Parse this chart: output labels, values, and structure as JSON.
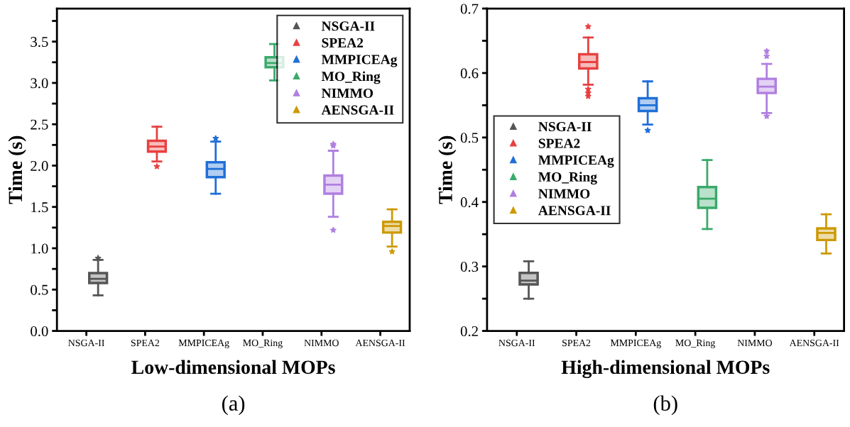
{
  "chart_data": [
    {
      "type": "box",
      "xlabel": "Low-dimensional MOPs",
      "ylabel": "Time (s)",
      "annotations": [
        "(a)"
      ],
      "legend": "top right",
      "marker": "triangle",
      "categories": [
        "NSGA-II",
        "SPEA2",
        "MMPICEAg",
        "MO_Ring",
        "NIMMO",
        "AENSGA-II"
      ],
      "ylim": [
        0,
        3.9
      ],
      "yticks": [
        {
          "value": 0,
          "label": "0.0"
        },
        {
          "value": 0.25,
          "label": null
        },
        0.5,
        {
          "value": 0.75,
          "label": null
        },
        {
          "value": 1,
          "label": "1.0"
        },
        {
          "value": 1.25,
          "label": null
        },
        1.5,
        {
          "value": 1.75,
          "label": null
        },
        {
          "value": 2,
          "label": "2.0"
        },
        {
          "value": 2.25,
          "label": null
        },
        2.5,
        {
          "value": 2.75,
          "label": null
        },
        {
          "value": 3,
          "label": "3.0"
        },
        {
          "value": 3.25,
          "label": null
        },
        3.5,
        {
          "value": 3.75,
          "label": null
        }
      ],
      "series": [
        {
          "name": "NSGA-II",
          "color": "#555555",
          "boxes": [
            {
              "low": 0.43,
              "q1": 0.58,
              "median": 0.63,
              "q3": 0.7,
              "high": 0.86,
              "outliers": [
                0.88
              ]
            },
            null,
            null,
            null,
            null,
            null
          ]
        },
        {
          "name": "SPEA2",
          "color": "#e84040",
          "boxes": [
            null,
            {
              "low": 2.05,
              "q1": 2.17,
              "median": 2.23,
              "q3": 2.3,
              "high": 2.47,
              "outliers": [
                1.99
              ]
            },
            null,
            null,
            null,
            null
          ]
        },
        {
          "name": "MMPICEAg",
          "color": "#1f6fd8",
          "boxes": [
            null,
            null,
            {
              "low": 1.66,
              "q1": 1.86,
              "median": 1.96,
              "q3": 2.04,
              "high": 2.29,
              "outliers": [
                2.33
              ]
            },
            null,
            null,
            null
          ]
        },
        {
          "name": "MO_Ring",
          "color": "#3aaa6a",
          "boxes": [
            null,
            null,
            null,
            {
              "low": 3.03,
              "q1": 3.19,
              "median": 3.24,
              "q3": 3.31,
              "high": 3.47
            },
            null,
            null
          ]
        },
        {
          "name": "NIMMO",
          "color": "#b07fe0",
          "boxes": [
            null,
            null,
            null,
            null,
            {
              "low": 1.38,
              "q1": 1.66,
              "median": 1.77,
              "q3": 1.88,
              "high": 2.18,
              "outliers": [
                2.26,
                2.24,
                1.22
              ]
            },
            null
          ]
        },
        {
          "name": "AENSGA-II",
          "color": "#cc9a06",
          "boxes": [
            null,
            null,
            null,
            null,
            null,
            {
              "low": 1.02,
              "q1": 1.19,
              "median": 1.27,
              "q3": 1.32,
              "high": 1.47,
              "outliers": [
                0.96
              ]
            }
          ]
        }
      ]
    },
    {
      "type": "box",
      "xlabel": "High-dimensional MOPs",
      "ylabel": "Time (s)",
      "annotations": [
        "(b)"
      ],
      "legend": "left",
      "marker": "triangle",
      "categories": [
        "NSGA-II",
        "SPEA2",
        "MMPICEAg",
        "MO_Ring",
        "NIMMO",
        "AENSGA-II"
      ],
      "ylim": [
        0.2,
        0.7
      ],
      "yticks": [
        0.2,
        {
          "value": 0.25,
          "label": null
        },
        0.3,
        {
          "value": 0.35,
          "label": null
        },
        0.4,
        {
          "value": 0.45,
          "label": null
        },
        0.5,
        {
          "value": 0.55,
          "label": null
        },
        0.6,
        {
          "value": 0.65,
          "label": null
        },
        0.7
      ],
      "series": [
        {
          "name": "NSGA-II",
          "color": "#555555",
          "boxes": [
            {
              "low": 0.25,
              "q1": 0.272,
              "median": 0.278,
              "q3": 0.29,
              "high": 0.308
            },
            null,
            null,
            null,
            null,
            null
          ]
        },
        {
          "name": "SPEA2",
          "color": "#e84040",
          "boxes": [
            null,
            {
              "low": 0.582,
              "q1": 0.607,
              "median": 0.617,
              "q3": 0.629,
              "high": 0.655,
              "outliers": [
                0.672,
                0.575,
                0.569,
                0.564
              ]
            },
            null,
            null,
            null,
            null
          ]
        },
        {
          "name": "MMPICEAg",
          "color": "#1f6fd8",
          "boxes": [
            null,
            null,
            {
              "low": 0.52,
              "q1": 0.541,
              "median": 0.55,
              "q3": 0.561,
              "high": 0.587,
              "outliers": [
                0.511
              ]
            },
            null,
            null,
            null
          ]
        },
        {
          "name": "MO_Ring",
          "color": "#3aaa6a",
          "boxes": [
            null,
            null,
            null,
            {
              "low": 0.358,
              "q1": 0.391,
              "median": 0.405,
              "q3": 0.423,
              "high": 0.465
            },
            null,
            null
          ]
        },
        {
          "name": "NIMMO",
          "color": "#b07fe0",
          "boxes": [
            null,
            null,
            null,
            null,
            {
              "low": 0.538,
              "q1": 0.569,
              "median": 0.579,
              "q3": 0.591,
              "high": 0.614,
              "outliers": [
                0.634,
                0.626,
                0.533
              ]
            },
            null
          ]
        },
        {
          "name": "AENSGA-II",
          "color": "#cc9a06",
          "boxes": [
            null,
            null,
            null,
            null,
            null,
            {
              "low": 0.32,
              "q1": 0.341,
              "median": 0.352,
              "q3": 0.359,
              "high": 0.381
            }
          ]
        }
      ]
    }
  ]
}
